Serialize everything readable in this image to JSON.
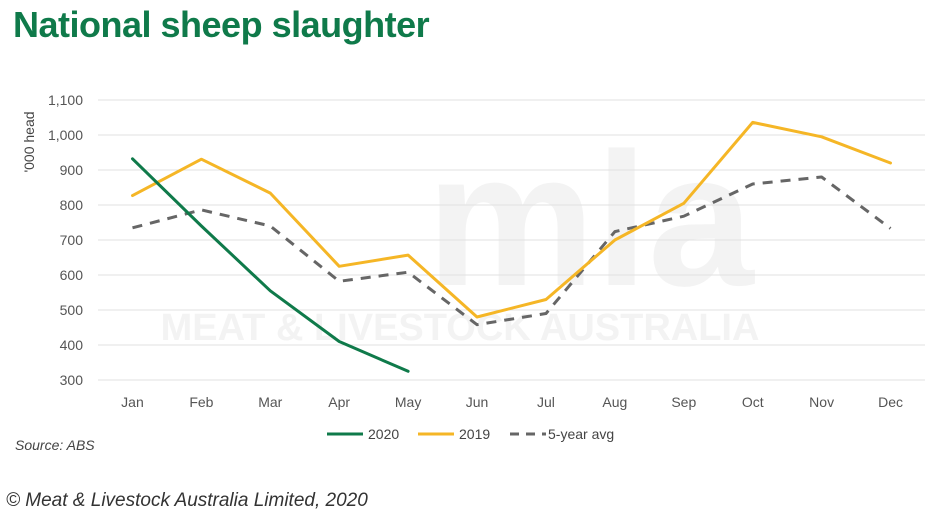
{
  "title": "National sheep slaughter",
  "source": "Source: ABS",
  "copyright": "© Meat & Livestock Australia Limited, 2020",
  "watermark": {
    "logo": "mla",
    "text": "MEAT & LIVESTOCK AUSTRALIA"
  },
  "colors": {
    "title": "#0f7a4a",
    "series_2020": "#0f7a4a",
    "series_2019": "#f5b626",
    "series_avg": "#666666",
    "grid": "#e0e0e0"
  },
  "chart_data": {
    "type": "line",
    "title": "National sheep slaughter",
    "ylabel": "'000 head",
    "xlabel": "",
    "ylim": [
      300,
      1100
    ],
    "yticks": [
      300,
      400,
      500,
      600,
      700,
      800,
      900,
      1000,
      1100
    ],
    "ytick_labels": [
      "300",
      "400",
      "500",
      "600",
      "700",
      "800",
      "900",
      "1,000",
      "1,100"
    ],
    "categories": [
      "Jan",
      "Feb",
      "Mar",
      "Apr",
      "May",
      "Jun",
      "Jul",
      "Aug",
      "Sep",
      "Oct",
      "Nov",
      "Dec"
    ],
    "grid": true,
    "legend_position": "bottom",
    "series": [
      {
        "name": "2020",
        "style": "solid",
        "color": "#0f7a4a",
        "values": [
          932,
          740,
          555,
          410,
          325,
          null,
          null,
          null,
          null,
          null,
          null,
          null
        ]
      },
      {
        "name": "2019",
        "style": "solid",
        "color": "#f5b626",
        "values": [
          827,
          931,
          834,
          625,
          657,
          480,
          530,
          700,
          805,
          1036,
          995,
          920
        ]
      },
      {
        "name": "5-year avg",
        "style": "dashed",
        "color": "#666666",
        "values": [
          735,
          786,
          740,
          582,
          608,
          458,
          490,
          724,
          768,
          860,
          880,
          733
        ]
      }
    ]
  }
}
